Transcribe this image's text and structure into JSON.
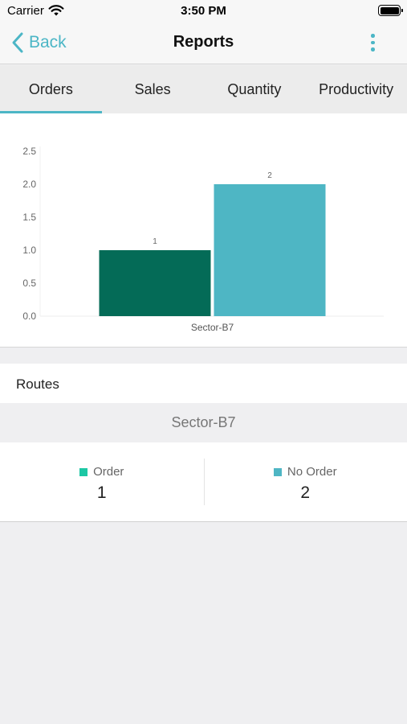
{
  "status_bar": {
    "carrier": "Carrier",
    "time": "3:50 PM"
  },
  "nav": {
    "back_label": "Back",
    "title": "Reports"
  },
  "tabs": [
    {
      "label": "Orders",
      "active": true
    },
    {
      "label": "Sales",
      "active": false
    },
    {
      "label": "Quantity",
      "active": false
    },
    {
      "label": "Productivity",
      "active": false
    }
  ],
  "colors": {
    "accent": "#4cb6c6",
    "order": "#046b57",
    "no_order": "#4eb6c4",
    "order_legend": "#1cc7a4"
  },
  "chart_data": {
    "type": "bar",
    "categories": [
      "Sector-B7"
    ],
    "series": [
      {
        "values": [
          1
        ],
        "color": "#046b57"
      },
      {
        "values": [
          2
        ],
        "color": "#4eb6c4"
      }
    ],
    "data_labels": [
      "1",
      "2"
    ],
    "yticks": [
      "0.0",
      "0.5",
      "1.0",
      "1.5",
      "2.0",
      "2.5"
    ],
    "ylim": [
      0,
      2.5
    ],
    "title": "",
    "xlabel": "",
    "ylabel": "",
    "grid": false
  },
  "routes": {
    "title": "Routes",
    "route_name": "Sector-B7",
    "stats": [
      {
        "label": "Order",
        "value": "1",
        "color": "#1cc7a4"
      },
      {
        "label": "No Order",
        "value": "2",
        "color": "#4eb6c4"
      }
    ]
  }
}
